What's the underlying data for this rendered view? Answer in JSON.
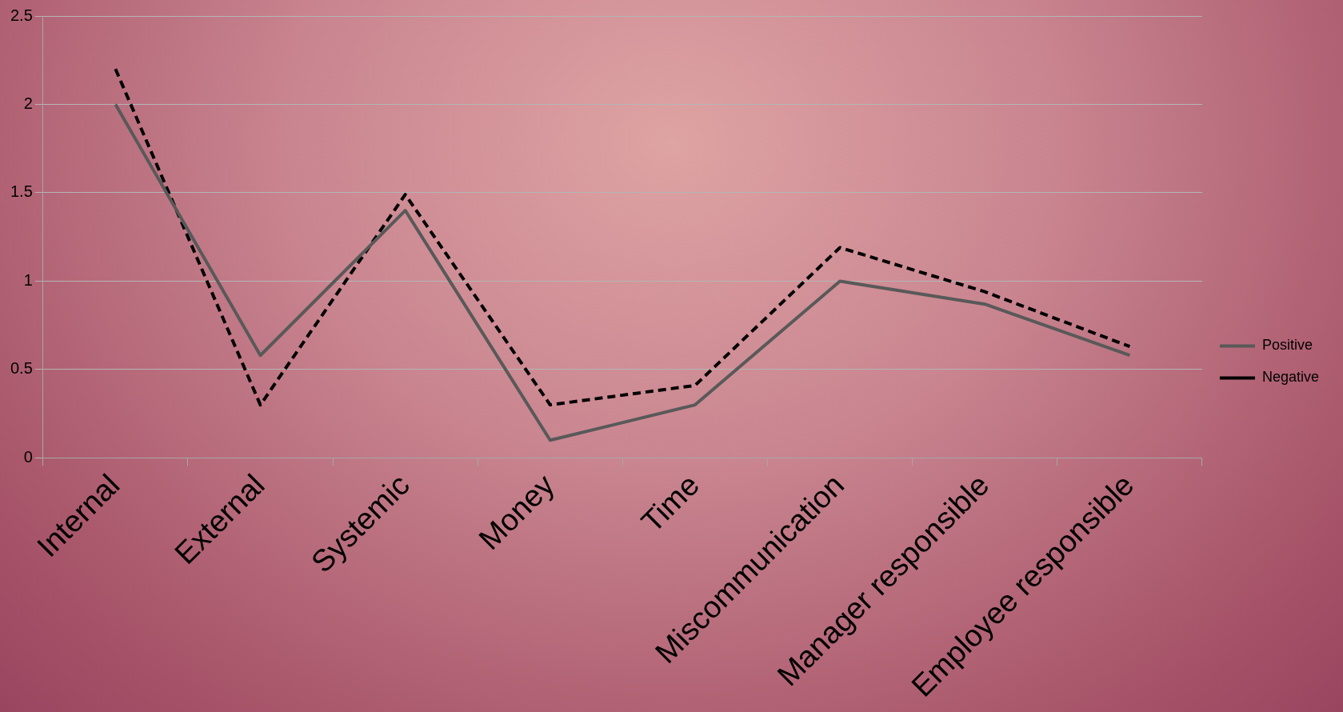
{
  "chart_data": {
    "type": "line",
    "categories": [
      "Internal",
      "External",
      "Systemic",
      "Money",
      "Time",
      "Miscommunication",
      "Manager responsible",
      "Employee responsible"
    ],
    "series": [
      {
        "name": "Positive",
        "color": "#595959",
        "line_style": "solid",
        "values": [
          2.0,
          0.58,
          1.4,
          0.1,
          0.3,
          1.0,
          0.87,
          0.58
        ]
      },
      {
        "name": "Negative",
        "color": "#000000",
        "line_style": "dashed",
        "values": [
          2.2,
          0.3,
          1.49,
          0.3,
          0.41,
          1.19,
          0.94,
          0.63
        ]
      }
    ],
    "ylim": [
      0,
      2.5
    ],
    "yticks": [
      0,
      0.5,
      1,
      1.5,
      2,
      2.5
    ],
    "grid": "y",
    "legend": "right",
    "marker": "none"
  }
}
